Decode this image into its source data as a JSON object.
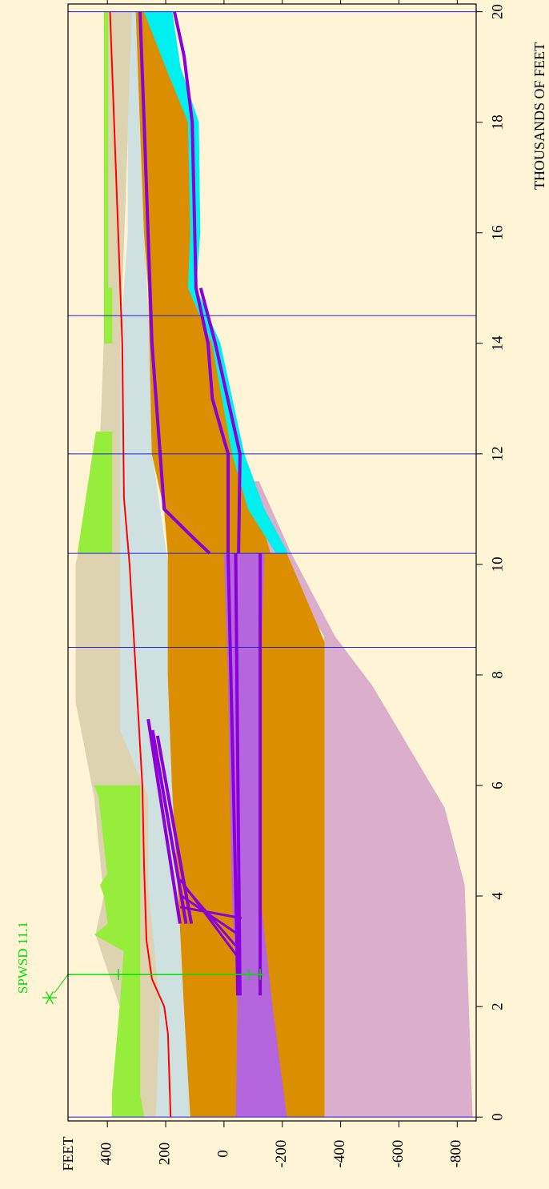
{
  "chart_data": {
    "type": "cross-section",
    "xlabel": "THOUSANDS OF FEET",
    "ylabel": "FEET",
    "xlim": [
      -0.07,
      20.14
    ],
    "xticks": [
      0,
      2,
      4,
      6,
      8,
      10,
      12,
      14,
      16,
      18,
      20
    ],
    "ylim": [
      -865,
      535
    ],
    "yticks": [
      -800,
      -600,
      -400,
      -200,
      0,
      200,
      400
    ],
    "layers": [
      {
        "color": "#ddd3b1",
        "x": [
          0,
          2,
          3.3,
          4,
          5.8,
          7.5,
          10,
          12,
          14,
          20
        ],
        "top": [
          385,
          357,
          440,
          412,
          445,
          508,
          508,
          426,
          412,
          412
        ],
        "bottom": [
          233,
          219,
          240,
          255,
          260,
          356,
          356,
          356,
          356,
          315
        ]
      },
      {
        "color": "#cfe0e0",
        "x": [
          0,
          2,
          4.2,
          5.8,
          7,
          10,
          12,
          14,
          16,
          18,
          20
        ],
        "top": [
          233,
          219,
          260,
          260,
          356,
          356,
          356,
          356,
          329,
          329,
          315
        ],
        "bottom": [
          115,
          137,
          155,
          175,
          185,
          192,
          247,
          255,
          274,
          288,
          302
        ]
      },
      {
        "color": "#db8f00",
        "x": [
          0,
          2,
          3.5,
          6,
          8,
          10.2,
          11,
          12,
          14,
          15,
          16,
          18,
          19,
          20
        ],
        "top": [
          115,
          137,
          151,
          178,
          192,
          192,
          205,
          247,
          255,
          260,
          274,
          288,
          295,
          302
        ],
        "bottom": [
          -344,
          -344,
          -344,
          -344,
          -344,
          -179,
          -83,
          -28,
          41,
          123,
          115,
          123,
          200,
          274
        ]
      },
      {
        "color": "#dbaecb",
        "x": [
          0,
          4.2,
          5.6,
          7.8,
          8.7,
          10.2,
          11.5
        ],
        "top": [
          -344,
          -344,
          -344,
          -344,
          -344,
          -160,
          -90
        ],
        "bottom": [
          -852,
          -825,
          -756,
          -509,
          -380,
          -230,
          -120
        ]
      },
      {
        "color": "#db8f00",
        "x": [
          0,
          2,
          6,
          8.6,
          10.2
        ],
        "top": [
          -215,
          -166,
          -124,
          -124,
          -138
        ],
        "bottom": [
          -344,
          -344,
          -344,
          -344,
          -215
        ]
      },
      {
        "color": "#b566dd",
        "x": [
          0,
          2,
          4,
          6,
          8,
          10.2
        ],
        "top": [
          -41,
          -47,
          -28,
          -20,
          -14,
          0
        ],
        "bottom": [
          -215,
          -166,
          -124,
          -124,
          -124,
          -138
        ]
      },
      {
        "color": "#00f0f0",
        "x": [
          10.2,
          11,
          12,
          14,
          15,
          16,
          18,
          19,
          20
        ],
        "top": [
          -179,
          -83,
          -28,
          41,
          123,
          115,
          123,
          200,
          274
        ],
        "bottom": [
          -220,
          -138,
          -69,
          13,
          96,
          82,
          87,
          150,
          178
        ]
      },
      {
        "color": "#96ed3c",
        "x": [
          0,
          0.4,
          2,
          3.0,
          3.3,
          3.5,
          4.0,
          4.2,
          4.4,
          5.8,
          6.0
        ],
        "top": [
          384,
          384,
          357,
          343,
          444,
          398,
          411,
          425,
          400,
          430,
          444
        ],
        "bottom": [
          274,
          288,
          288,
          288,
          288,
          288,
          288,
          288,
          288,
          288,
          288
        ]
      },
      {
        "color": "#96ed3c",
        "x": [
          10.2,
          12.4
        ],
        "top": [
          502,
          439
        ],
        "bottom": [
          384,
          384
        ]
      },
      {
        "color": "#96ed3c",
        "x": [
          14,
          15
        ],
        "top": [
          411,
          411
        ],
        "bottom": [
          384,
          384
        ]
      },
      {
        "color": "#96ed3c",
        "x": [
          15,
          20
        ],
        "top": [
          411,
          411
        ],
        "bottom": [
          398,
          398
        ]
      }
    ],
    "lines": [
      {
        "color": "#ff0000",
        "width": 2,
        "x": [
          0,
          1.5,
          2,
          2.5,
          3.2,
          4.5,
          6,
          8,
          10,
          11.2,
          14,
          16,
          18,
          20
        ],
        "values": [
          183,
          192,
          205,
          247,
          266,
          274,
          280,
          302,
          324,
          343,
          349,
          363,
          377,
          391
        ]
      },
      {
        "color": "#8a00d6",
        "width": 4,
        "x": [
          3.5,
          7.2
        ],
        "values": [
          151,
          260
        ]
      },
      {
        "color": "#8a00d6",
        "width": 4,
        "x": [
          3.5,
          7.0
        ],
        "values": [
          130,
          245
        ]
      },
      {
        "color": "#8a00d6",
        "width": 4,
        "x": [
          3.5,
          6.9
        ],
        "values": [
          112,
          228
        ]
      },
      {
        "color": "#8a00d6",
        "width": 3,
        "x": [
          2.9,
          4.3
        ],
        "values": [
          -47,
          151
        ]
      },
      {
        "color": "#8a00d6",
        "width": 3,
        "x": [
          3.1,
          4.2
        ],
        "values": [
          -40,
          140
        ]
      },
      {
        "color": "#8a00d6",
        "width": 3,
        "x": [
          3.3,
          4.0
        ],
        "values": [
          -50,
          145
        ]
      },
      {
        "color": "#8a00d6",
        "width": 3,
        "x": [
          3.6,
          3.8
        ],
        "values": [
          -60,
          150
        ]
      },
      {
        "color": "#8a00d6",
        "width": 4,
        "x": [
          2.2,
          3.0,
          10.2
        ],
        "values": [
          -47,
          -45,
          -14
        ]
      },
      {
        "color": "#8a00d6",
        "width": 4,
        "x": [
          2.2,
          10.2
        ],
        "values": [
          -55,
          -40
        ]
      },
      {
        "color": "#8a00d6",
        "width": 4,
        "x": [
          2.2,
          3.6,
          10.2
        ],
        "values": [
          -124,
          -124,
          -124
        ]
      },
      {
        "color": "#8a00d6",
        "width": 4,
        "x": [
          10.2,
          12,
          13,
          14,
          15,
          18,
          19.2,
          20
        ],
        "values": [
          -14,
          -14,
          40,
          55,
          96,
          109,
          137,
          170
        ]
      },
      {
        "color": "#8a00d6",
        "width": 4,
        "x": [
          10.2,
          12,
          14,
          15
        ],
        "values": [
          -50,
          -55,
          30,
          80
        ]
      },
      {
        "color": "#8a00d6",
        "width": 4,
        "x": [
          10.2,
          10.5,
          11,
          14,
          18,
          20
        ],
        "values": [
          49,
          109,
          205,
          247,
          274,
          288
        ]
      }
    ],
    "vlines": {
      "color": "#2222dd",
      "x": [
        0,
        8.5,
        10.2,
        12,
        14.5,
        20
      ]
    },
    "well": {
      "label": "SPWSD 11.1",
      "color": "#00e000",
      "x": 2.58,
      "bottom": -137,
      "marks": [
        362,
        -85,
        -124
      ]
    }
  }
}
